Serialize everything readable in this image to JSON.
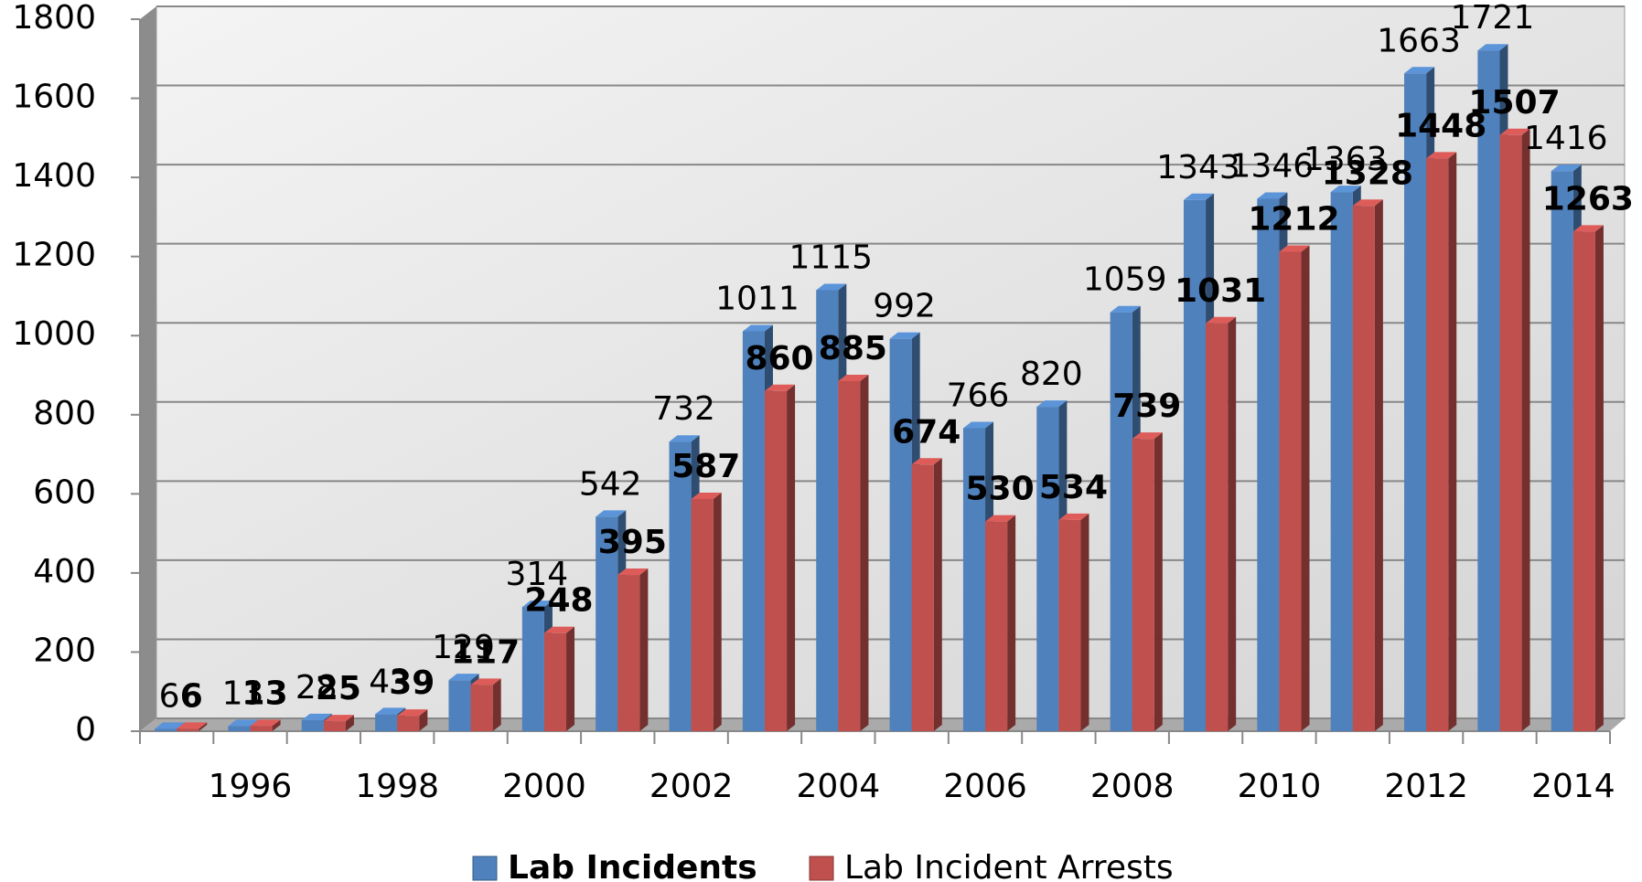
{
  "chart_data": {
    "type": "bar3d",
    "categories": [
      null,
      "1996",
      null,
      "1998",
      null,
      "2000",
      null,
      "2002",
      null,
      "2004",
      null,
      "2006",
      null,
      "2008",
      null,
      "2010",
      null,
      "2012",
      null,
      "2014"
    ],
    "series": [
      {
        "name": "Lab Incidents",
        "color": "#4f81bd",
        "values": [
          6,
          13,
          28,
          43,
          129,
          314,
          542,
          732,
          1011,
          1115,
          992,
          766,
          820,
          1059,
          1343,
          1346,
          1363,
          1663,
          1721,
          1416
        ]
      },
      {
        "name": "Lab Incident Arrests",
        "color": "#c0504d",
        "values": [
          6,
          13,
          25,
          39,
          117,
          248,
          395,
          587,
          860,
          885,
          674,
          530,
          534,
          739,
          1031,
          1212,
          1328,
          1448,
          1507,
          1263
        ]
      }
    ],
    "ylim": [
      0,
      1800
    ],
    "yticks": [
      0,
      200,
      400,
      600,
      800,
      1000,
      1200,
      1400,
      1600,
      1800
    ],
    "grid": true,
    "legend": "bottom"
  }
}
